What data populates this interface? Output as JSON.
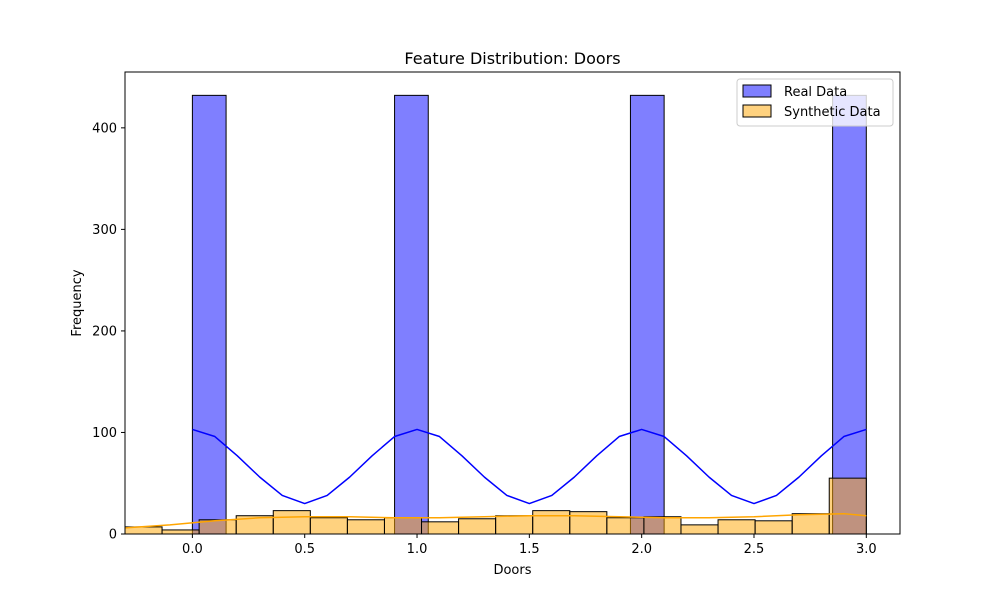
{
  "chart_data": {
    "type": "bar",
    "title": "Feature Distribution: Doors",
    "xlabel": "Doors",
    "ylabel": "Frequency",
    "xlim": [
      -0.3,
      3.15
    ],
    "ylim": [
      0,
      455
    ],
    "xticks": [
      0.0,
      0.5,
      1.0,
      1.5,
      2.0,
      2.5,
      3.0
    ],
    "xtick_labels": [
      "0.0",
      "0.5",
      "1.0",
      "1.5",
      "2.0",
      "2.5",
      "3.0"
    ],
    "yticks": [
      0,
      100,
      200,
      300,
      400
    ],
    "ytick_labels": [
      "0",
      "100",
      "200",
      "300",
      "400"
    ],
    "legend_position": "top-right",
    "grid": false,
    "series": [
      {
        "name": "Real Data",
        "kind": "histogram",
        "color": "#0000ff",
        "bins": [
          {
            "x0": 0.0,
            "x1": 0.15,
            "count": 432
          },
          {
            "x0": 0.9,
            "x1": 1.05,
            "count": 432
          },
          {
            "x0": 1.95,
            "x1": 2.1,
            "count": 432
          },
          {
            "x0": 2.85,
            "x1": 3.0,
            "count": 432
          }
        ],
        "kde": {
          "x": [
            0.0,
            0.1,
            0.2,
            0.3,
            0.4,
            0.5,
            0.6,
            0.7,
            0.8,
            0.9,
            1.0,
            1.1,
            1.2,
            1.3,
            1.4,
            1.5,
            1.6,
            1.7,
            1.8,
            1.9,
            2.0,
            2.1,
            2.2,
            2.3,
            2.4,
            2.5,
            2.6,
            2.7,
            2.8,
            2.9,
            3.0
          ],
          "y": [
            103,
            96,
            77,
            56,
            38,
            30,
            38,
            56,
            77,
            96,
            103,
            96,
            77,
            56,
            38,
            30,
            38,
            56,
            77,
            96,
            103,
            96,
            77,
            56,
            38,
            30,
            38,
            56,
            77,
            96,
            103
          ]
        }
      },
      {
        "name": "Synthetic Data",
        "kind": "histogram",
        "color": "#ffa500",
        "bins": [
          {
            "x0": -0.3,
            "x1": -0.135,
            "count": 7
          },
          {
            "x0": -0.135,
            "x1": 0.03,
            "count": 4
          },
          {
            "x0": 0.03,
            "x1": 0.195,
            "count": 14
          },
          {
            "x0": 0.195,
            "x1": 0.36,
            "count": 18
          },
          {
            "x0": 0.36,
            "x1": 0.525,
            "count": 23
          },
          {
            "x0": 0.525,
            "x1": 0.69,
            "count": 16
          },
          {
            "x0": 0.69,
            "x1": 0.855,
            "count": 14
          },
          {
            "x0": 0.855,
            "x1": 1.02,
            "count": 16
          },
          {
            "x0": 1.02,
            "x1": 1.185,
            "count": 12
          },
          {
            "x0": 1.185,
            "x1": 1.35,
            "count": 15
          },
          {
            "x0": 1.35,
            "x1": 1.515,
            "count": 18
          },
          {
            "x0": 1.515,
            "x1": 1.68,
            "count": 23
          },
          {
            "x0": 1.68,
            "x1": 1.845,
            "count": 22
          },
          {
            "x0": 1.845,
            "x1": 2.01,
            "count": 16
          },
          {
            "x0": 2.01,
            "x1": 2.175,
            "count": 17
          },
          {
            "x0": 2.175,
            "x1": 2.34,
            "count": 9
          },
          {
            "x0": 2.34,
            "x1": 2.505,
            "count": 14
          },
          {
            "x0": 2.505,
            "x1": 2.67,
            "count": 13
          },
          {
            "x0": 2.67,
            "x1": 2.835,
            "count": 20
          },
          {
            "x0": 2.835,
            "x1": 3.0,
            "count": 55
          }
        ],
        "kde": {
          "x": [
            -0.3,
            -0.1,
            0.1,
            0.3,
            0.5,
            0.7,
            0.9,
            1.1,
            1.3,
            1.5,
            1.7,
            1.9,
            2.1,
            2.3,
            2.5,
            2.7,
            2.9,
            3.0
          ],
          "y": [
            6,
            9,
            13,
            16,
            17,
            17,
            16,
            16,
            17,
            18,
            18,
            17,
            16,
            16,
            17,
            19,
            20,
            18
          ]
        }
      }
    ]
  }
}
